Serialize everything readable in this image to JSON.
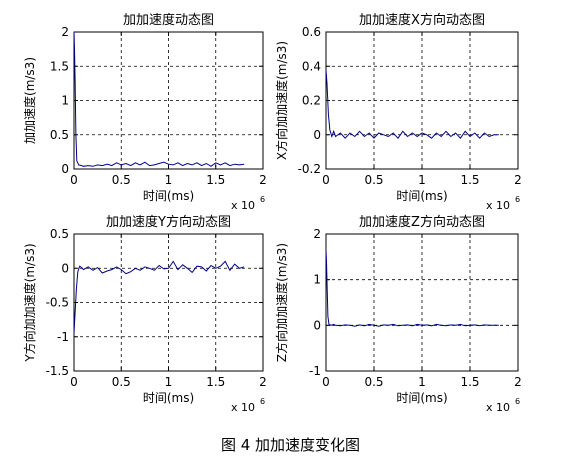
{
  "caption": "图 4  加加速度变化图",
  "chart_data": [
    {
      "type": "line",
      "title": "加加速度动态图",
      "xlabel": "时间(ms)",
      "ylabel": "加加速度(m/s3)",
      "x_exponent": "x 10",
      "x_exponent_power": "6",
      "xlim": [
        0,
        2
      ],
      "ylim": [
        0,
        2
      ],
      "xticks": [
        0,
        0.5,
        1,
        1.5,
        2
      ],
      "xtick_labels": [
        "0",
        "0.5",
        "1",
        "1.5",
        "2"
      ],
      "yticks": [
        0,
        0.5,
        1,
        1.5,
        2
      ],
      "ytick_labels": [
        "0",
        "0.5",
        "1",
        "1.5",
        "2"
      ],
      "grid": true,
      "line_color": "#00008B",
      "series": [
        {
          "x": [
            0,
            0.005,
            0.012,
            0.02,
            0.03,
            0.05,
            0.08,
            0.1,
            0.15,
            0.2,
            0.25,
            0.3,
            0.35,
            0.4,
            0.45,
            0.5,
            0.55,
            0.6,
            0.65,
            0.7,
            0.75,
            0.8,
            0.85,
            0.9,
            0.95,
            1.0,
            1.05,
            1.1,
            1.15,
            1.2,
            1.25,
            1.3,
            1.35,
            1.4,
            1.45,
            1.5,
            1.55,
            1.6,
            1.65,
            1.7,
            1.75,
            1.8
          ],
          "y": [
            2.0,
            1.75,
            1.3,
            0.5,
            0.12,
            0.06,
            0.05,
            0.04,
            0.05,
            0.04,
            0.06,
            0.05,
            0.07,
            0.05,
            0.09,
            0.06,
            0.08,
            0.05,
            0.09,
            0.06,
            0.1,
            0.05,
            0.06,
            0.08,
            0.1,
            0.07,
            0.06,
            0.09,
            0.05,
            0.08,
            0.06,
            0.09,
            0.05,
            0.08,
            0.04,
            0.09,
            0.06,
            0.09,
            0.05,
            0.07,
            0.06,
            0.07
          ]
        }
      ]
    },
    {
      "type": "line",
      "title": "加加速度X方向动态图",
      "xlabel": "时间(ms)",
      "ylabel": "X方向加加速度(m/s3)",
      "x_exponent": "x 10",
      "x_exponent_power": "6",
      "xlim": [
        0,
        2
      ],
      "ylim": [
        -0.2,
        0.6
      ],
      "xticks": [
        0,
        0.5,
        1,
        1.5,
        2
      ],
      "xtick_labels": [
        "0",
        "0.5",
        "1",
        "1.5",
        "2"
      ],
      "yticks": [
        -0.2,
        0,
        0.2,
        0.4,
        0.6
      ],
      "ytick_labels": [
        "-0.2",
        "0",
        "0.2",
        "0.4",
        "0.6"
      ],
      "grid": true,
      "line_color": "#00008B",
      "series": [
        {
          "x": [
            0,
            0.01,
            0.025,
            0.04,
            0.06,
            0.08,
            0.1,
            0.15,
            0.2,
            0.25,
            0.3,
            0.35,
            0.4,
            0.45,
            0.5,
            0.55,
            0.6,
            0.65,
            0.7,
            0.75,
            0.8,
            0.85,
            0.9,
            0.95,
            1.0,
            1.05,
            1.1,
            1.15,
            1.2,
            1.25,
            1.3,
            1.35,
            1.4,
            1.45,
            1.5,
            1.55,
            1.6,
            1.65,
            1.7,
            1.75,
            1.8
          ],
          "y": [
            0.38,
            0.3,
            0.12,
            0.03,
            -0.01,
            0.02,
            -0.01,
            0.01,
            -0.02,
            0.01,
            -0.01,
            0.02,
            -0.01,
            0.01,
            -0.02,
            0.01,
            0.0,
            -0.01,
            0.01,
            -0.02,
            0.02,
            -0.01,
            0.01,
            -0.01,
            0.01,
            0.0,
            -0.02,
            0.01,
            -0.01,
            0.02,
            -0.01,
            0.01,
            -0.02,
            0.02,
            -0.01,
            0.01,
            -0.02,
            0.01,
            -0.01,
            0.0,
            0.0
          ]
        }
      ]
    },
    {
      "type": "line",
      "title": "加加速度Y方向动态图",
      "xlabel": "时间(ms)",
      "ylabel": "Y方向加加速度(m/s3)",
      "x_exponent": "x 10",
      "x_exponent_power": "6",
      "xlim": [
        0,
        2
      ],
      "ylim": [
        -1.5,
        0.5
      ],
      "xticks": [
        0,
        0.5,
        1,
        1.5,
        2
      ],
      "xtick_labels": [
        "0",
        "0.5",
        "1",
        "1.5",
        "2"
      ],
      "yticks": [
        -1.5,
        -1,
        -0.5,
        0,
        0.5
      ],
      "ytick_labels": [
        "-1.5",
        "-1",
        "-0.5",
        "0",
        "0.5"
      ],
      "grid": true,
      "line_color": "#00008B",
      "series": [
        {
          "x": [
            0,
            0.01,
            0.025,
            0.04,
            0.06,
            0.08,
            0.1,
            0.15,
            0.2,
            0.25,
            0.3,
            0.35,
            0.4,
            0.45,
            0.5,
            0.55,
            0.6,
            0.65,
            0.7,
            0.75,
            0.8,
            0.85,
            0.9,
            0.95,
            1.0,
            1.05,
            1.1,
            1.15,
            1.2,
            1.25,
            1.3,
            1.35,
            1.4,
            1.45,
            1.5,
            1.55,
            1.6,
            1.65,
            1.7,
            1.75,
            1.8
          ],
          "y": [
            -0.95,
            -0.7,
            -0.3,
            -0.05,
            0.03,
            0.01,
            -0.02,
            0.02,
            -0.03,
            0.01,
            -0.07,
            -0.04,
            -0.02,
            0.02,
            -0.02,
            -0.08,
            -0.05,
            0.0,
            -0.03,
            0.02,
            0.0,
            -0.03,
            0.04,
            -0.01,
            0.0,
            0.1,
            -0.02,
            0.05,
            0.0,
            -0.06,
            0.03,
            0.02,
            -0.04,
            0.04,
            0.0,
            0.03,
            0.1,
            -0.03,
            0.06,
            0.0,
            0.02
          ]
        }
      ]
    },
    {
      "type": "line",
      "title": "加加速度Z方向动态图",
      "xlabel": "时间(ms)",
      "ylabel": "Z方向加加速度(m/s3)",
      "x_exponent": "x 10",
      "x_exponent_power": "6",
      "xlim": [
        0,
        2
      ],
      "ylim": [
        -1,
        2
      ],
      "xticks": [
        0,
        0.5,
        1,
        1.5,
        2
      ],
      "xtick_labels": [
        "0",
        "0.5",
        "1",
        "1.5",
        "2"
      ],
      "yticks": [
        -1,
        0,
        1,
        2
      ],
      "ytick_labels": [
        "-1",
        "0",
        "1",
        "2"
      ],
      "grid": true,
      "line_color": "#00008B",
      "series": [
        {
          "x": [
            0,
            0.005,
            0.012,
            0.02,
            0.03,
            0.05,
            0.08,
            0.1,
            0.15,
            0.2,
            0.25,
            0.3,
            0.35,
            0.4,
            0.45,
            0.5,
            0.55,
            0.6,
            0.65,
            0.7,
            0.75,
            0.8,
            0.85,
            0.9,
            0.95,
            1.0,
            1.05,
            1.1,
            1.15,
            1.2,
            1.25,
            1.3,
            1.35,
            1.4,
            1.45,
            1.5,
            1.55,
            1.6,
            1.65,
            1.7,
            1.75,
            1.8
          ],
          "y": [
            1.65,
            1.4,
            0.8,
            0.2,
            0.03,
            0.0,
            0.02,
            0.0,
            -0.01,
            0.01,
            0.0,
            -0.02,
            0.01,
            -0.01,
            0.02,
            0.0,
            -0.02,
            0.01,
            0.0,
            0.02,
            -0.01,
            0.0,
            0.01,
            -0.01,
            0.02,
            0.0,
            0.01,
            -0.01,
            0.02,
            0.0,
            -0.01,
            0.01,
            0.0,
            0.02,
            -0.01,
            0.0,
            0.01,
            -0.01,
            0.01,
            0.0,
            0.0,
            0.0
          ]
        }
      ]
    }
  ]
}
